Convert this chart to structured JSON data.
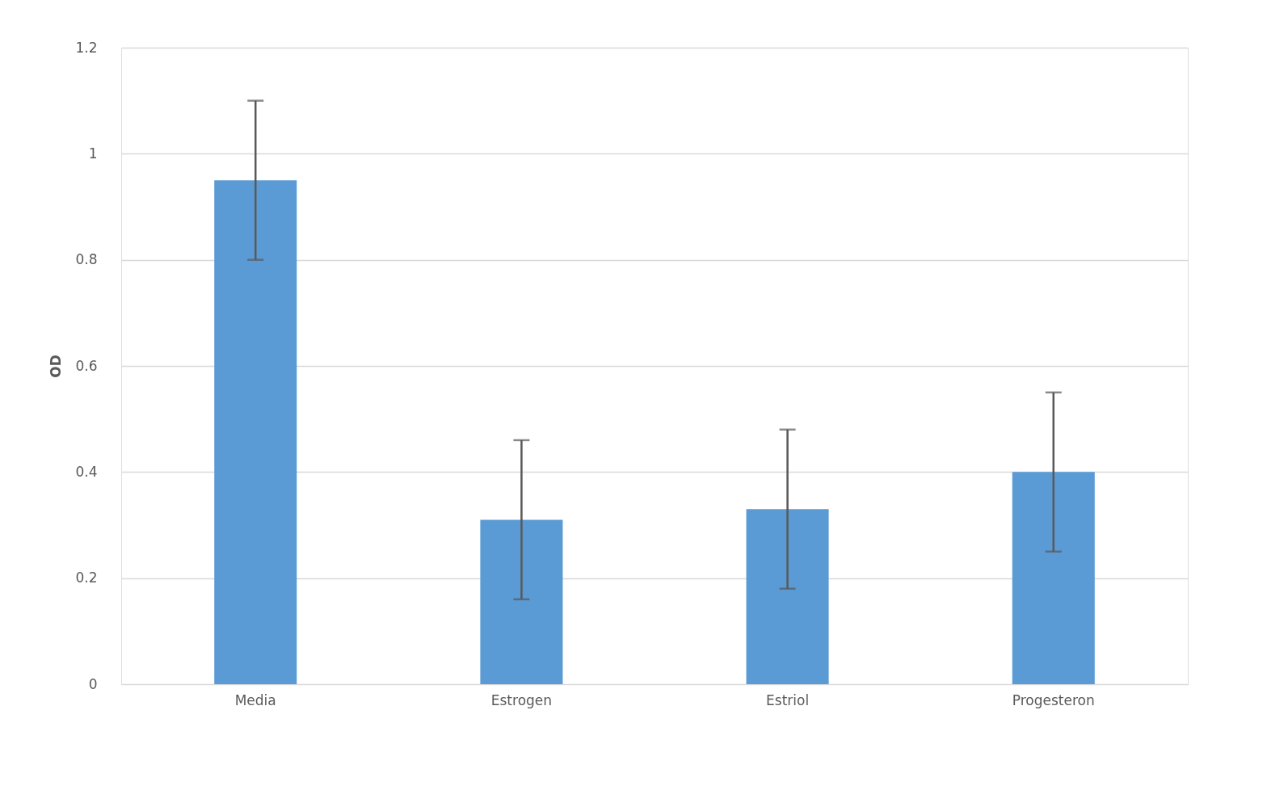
{
  "chart_data": {
    "type": "bar",
    "ylabel": "OD",
    "categories": [
      "Media",
      "Estrogen",
      "Estriol",
      "Progesteron"
    ],
    "series": [
      {
        "color": "#5b9bd5",
        "values": [
          0.95,
          0.31,
          0.33,
          0.4
        ],
        "errors": [
          0.15,
          0.15,
          0.15,
          0.15
        ]
      }
    ],
    "ylim": [
      0,
      1.2
    ],
    "yticks": [
      0,
      0.2,
      0.4,
      0.6,
      0.8,
      1,
      1.2
    ],
    "grid": "y"
  }
}
